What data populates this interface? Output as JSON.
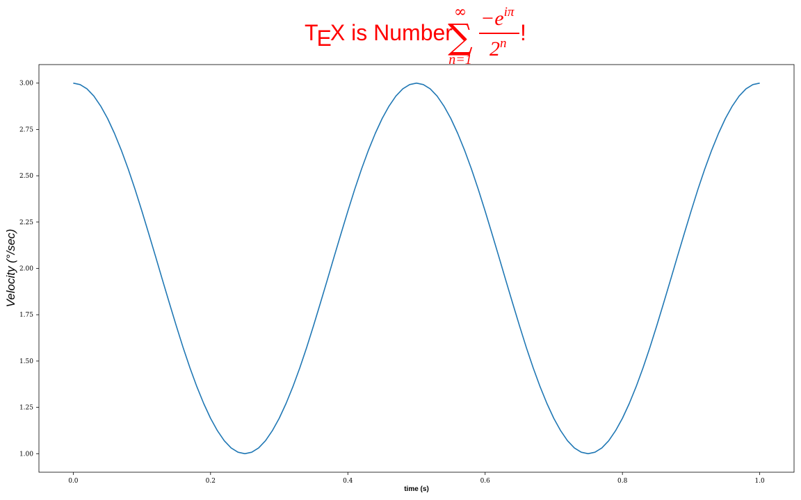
{
  "chart_data": {
    "type": "line",
    "title": {
      "tex_letters": [
        "T",
        "E",
        "X"
      ],
      "text": " is Number",
      "sum_upper": "∞",
      "sum_symbol": "∑",
      "sum_lower": "n=1",
      "numerator_base": "−e",
      "numerator_exp": "iπ",
      "denominator_base": "2",
      "denominator_exp": "n",
      "suffix": "!"
    },
    "title_color": "#ff0000",
    "xlabel": "time (s)",
    "ylabel": "Velocity (°/sec)",
    "xlim": [
      -0.05,
      1.05
    ],
    "ylim": [
      0.9,
      3.1
    ],
    "x_ticks": [
      0.0,
      0.2,
      0.4,
      0.6,
      0.8,
      1.0
    ],
    "x_tick_labels": [
      "0.0",
      "0.2",
      "0.4",
      "0.6",
      "0.8",
      "1.0"
    ],
    "y_ticks": [
      1.0,
      1.25,
      1.5,
      1.75,
      2.0,
      2.25,
      2.5,
      2.75,
      3.0
    ],
    "y_tick_labels": [
      "1.00",
      "1.25",
      "1.50",
      "1.75",
      "2.00",
      "2.25",
      "2.50",
      "2.75",
      "3.00"
    ],
    "grid": false,
    "series": [
      {
        "color": "#1f77b4",
        "x": [
          0.0,
          0.01,
          0.02,
          0.03,
          0.04,
          0.05,
          0.06,
          0.07,
          0.08,
          0.09,
          0.1,
          0.11,
          0.12,
          0.13,
          0.14,
          0.15,
          0.16,
          0.17,
          0.18,
          0.19,
          0.2,
          0.21,
          0.22,
          0.23,
          0.24,
          0.25,
          0.26,
          0.27,
          0.28,
          0.29,
          0.3,
          0.31,
          0.32,
          0.33,
          0.34,
          0.35,
          0.36,
          0.37,
          0.38,
          0.39,
          0.4,
          0.41,
          0.42,
          0.43,
          0.44,
          0.45,
          0.46,
          0.47,
          0.48,
          0.49,
          0.5,
          0.51,
          0.52,
          0.53,
          0.54,
          0.55,
          0.56,
          0.57,
          0.58,
          0.59,
          0.6,
          0.61,
          0.62,
          0.63,
          0.64,
          0.65,
          0.66,
          0.67,
          0.68,
          0.69,
          0.7,
          0.71,
          0.72,
          0.73,
          0.74,
          0.75,
          0.76,
          0.77,
          0.78,
          0.79,
          0.8,
          0.81,
          0.82,
          0.83,
          0.84,
          0.85,
          0.86,
          0.87,
          0.88,
          0.89,
          0.9,
          0.91,
          0.92,
          0.93,
          0.94,
          0.95,
          0.96,
          0.97,
          0.98,
          0.99,
          1.0
        ],
        "y": [
          3.0,
          2.992,
          2.969,
          2.93,
          2.876,
          2.809,
          2.729,
          2.638,
          2.537,
          2.427,
          2.309,
          2.187,
          2.063,
          1.937,
          1.813,
          1.691,
          1.573,
          1.463,
          1.362,
          1.271,
          1.191,
          1.124,
          1.07,
          1.031,
          1.008,
          1.0,
          1.008,
          1.031,
          1.07,
          1.124,
          1.191,
          1.271,
          1.362,
          1.463,
          1.573,
          1.691,
          1.813,
          1.937,
          2.063,
          2.187,
          2.309,
          2.427,
          2.537,
          2.638,
          2.729,
          2.809,
          2.876,
          2.93,
          2.969,
          2.992,
          3.0,
          2.992,
          2.969,
          2.93,
          2.876,
          2.809,
          2.729,
          2.638,
          2.537,
          2.427,
          2.309,
          2.187,
          2.063,
          1.937,
          1.813,
          1.691,
          1.573,
          1.463,
          1.362,
          1.271,
          1.191,
          1.124,
          1.07,
          1.031,
          1.008,
          1.0,
          1.008,
          1.031,
          1.07,
          1.124,
          1.191,
          1.271,
          1.362,
          1.463,
          1.573,
          1.691,
          1.813,
          1.937,
          2.063,
          2.187,
          2.309,
          2.427,
          2.537,
          2.638,
          2.729,
          2.809,
          2.876,
          2.93,
          2.969,
          2.992,
          3.0
        ]
      }
    ]
  }
}
